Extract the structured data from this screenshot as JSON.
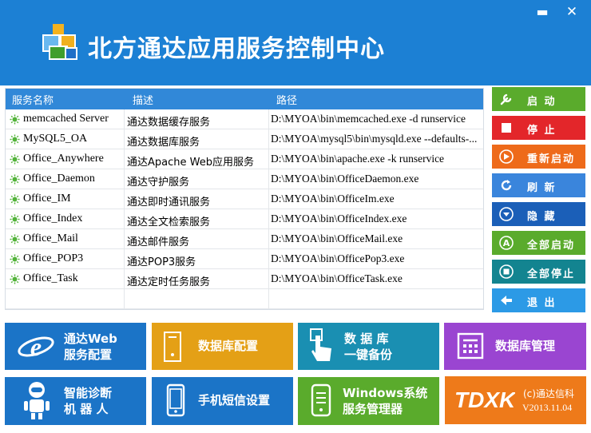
{
  "window": {
    "title": "北方通达应用服务控制中心",
    "minimize_glyph": "▬",
    "close_glyph": "✕"
  },
  "table": {
    "headers": [
      "服务名称",
      "描述",
      "路径"
    ],
    "rows": [
      {
        "name": "memcached Server",
        "desc": "通达数据缓存服务",
        "path": "D:\\MYOA\\bin\\memcached.exe -d runservice"
      },
      {
        "name": "MySQL5_OA",
        "desc": "通达数据库服务",
        "path": "D:\\MYOA\\mysql5\\bin\\mysqld.exe --defaults-..."
      },
      {
        "name": "Office_Anywhere",
        "desc": "通达Apache Web应用服务",
        "path": "D:\\MYOA\\bin\\apache.exe -k runservice"
      },
      {
        "name": "Office_Daemon",
        "desc": "通达守护服务",
        "path": "D:\\MYOA\\bin\\OfficeDaemon.exe"
      },
      {
        "name": "Office_IM",
        "desc": "通达即时通讯服务",
        "path": "D:\\MYOA\\bin\\OfficeIm.exe"
      },
      {
        "name": "Office_Index",
        "desc": "通达全文检索服务",
        "path": "D:\\MYOA\\bin\\OfficeIndex.exe"
      },
      {
        "name": "Office_Mail",
        "desc": "通达邮件服务",
        "path": "D:\\MYOA\\bin\\OfficeMail.exe"
      },
      {
        "name": "Office_POP3",
        "desc": "通达POP3服务",
        "path": "D:\\MYOA\\bin\\OfficePop3.exe"
      },
      {
        "name": "Office_Task",
        "desc": "通达定时任务服务",
        "path": "D:\\MYOA\\bin\\OfficeTask.exe"
      }
    ]
  },
  "side_buttons": [
    {
      "label": "启 动",
      "icon": "wrench-icon",
      "color": "#5aab2c"
    },
    {
      "label": "停 止",
      "icon": "stop-icon",
      "color": "#e3262a"
    },
    {
      "label": "重新启动",
      "icon": "restart-icon",
      "color": "#ee6a1a"
    },
    {
      "label": "刷 新",
      "icon": "refresh-icon",
      "color": "#3a85dc"
    },
    {
      "label": "隐 藏",
      "icon": "hide-icon",
      "color": "#1b5fb8"
    },
    {
      "label": "全部启动",
      "icon": "start-all-icon",
      "color": "#5aab2c"
    },
    {
      "label": "全部停止",
      "icon": "stop-all-icon",
      "color": "#138490"
    },
    {
      "label": "退 出",
      "icon": "exit-icon",
      "color": "#2c9ae6"
    }
  ],
  "tiles": [
    {
      "line1": "通达Web",
      "line2": "服务配置",
      "icon": "ie-icon",
      "color": "#1b74c7"
    },
    {
      "line1": "数据库配置",
      "line2": "",
      "icon": "server-icon",
      "color": "#e4a016"
    },
    {
      "line1": "数 据 库",
      "line2": "一键备份",
      "icon": "touch-icon",
      "color": "#1a8fb2"
    },
    {
      "line1": "数据库管理",
      "line2": "",
      "icon": "grid-icon",
      "color": "#9a45d1"
    },
    {
      "line1": "智能诊断",
      "line2": "机 器 人",
      "icon": "robot-icon",
      "color": "#1b74c7"
    },
    {
      "line1": "手机短信设置",
      "line2": "",
      "icon": "phone-icon",
      "color": "#1b74c7"
    },
    {
      "line1": "Windows系统",
      "line2": "服务管理器",
      "icon": "mobile-icon",
      "color": "#5aab2c"
    }
  ],
  "brand": {
    "logo_text": "TDXK",
    "copyright": "(c)通达信科",
    "version": "V2013.11.04",
    "color": "#ee7a1a"
  }
}
